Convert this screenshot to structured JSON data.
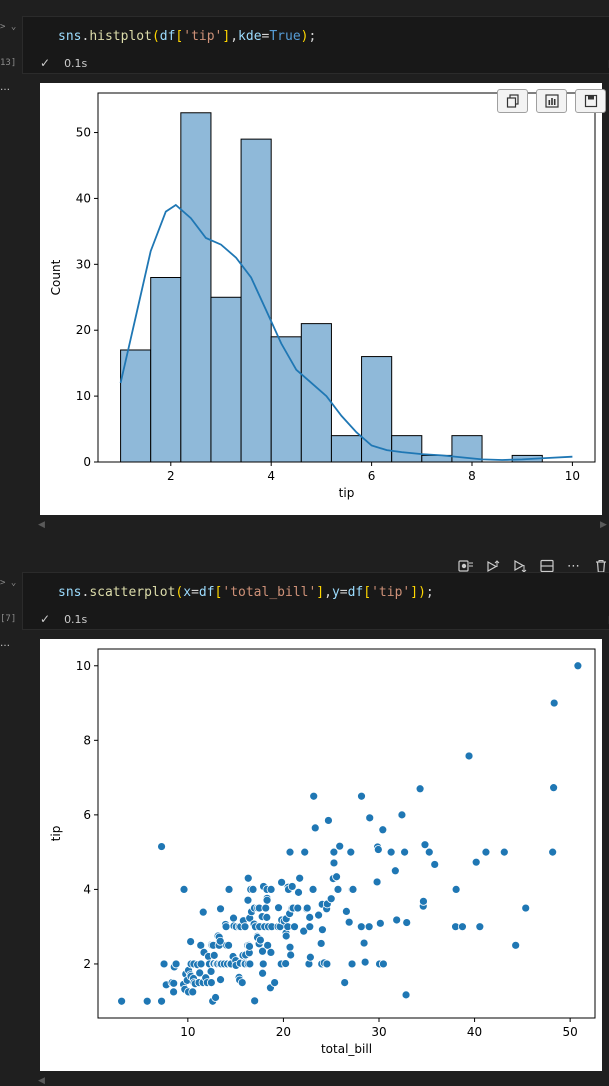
{
  "cells": [
    {
      "exec_count": "13]",
      "code_tokens": [
        {
          "t": "sns",
          "c": "id"
        },
        {
          "t": ".",
          "c": "op"
        },
        {
          "t": "histplot",
          "c": "fn"
        },
        {
          "t": "(",
          "c": "pn"
        },
        {
          "t": "df",
          "c": "id"
        },
        {
          "t": "[",
          "c": "pn"
        },
        {
          "t": "'tip'",
          "c": "st"
        },
        {
          "t": "]",
          "c": "pn"
        },
        {
          "t": ",",
          "c": "op"
        },
        {
          "t": "kde",
          "c": "id"
        },
        {
          "t": "=",
          "c": "op"
        },
        {
          "t": "True",
          "c": "kw"
        },
        {
          "t": ")",
          "c": "pn"
        },
        {
          "t": ";",
          "c": "op"
        }
      ],
      "time": "0.1s",
      "lang": "Py"
    },
    {
      "exec_count": "[7]",
      "code_tokens": [
        {
          "t": "sns",
          "c": "id"
        },
        {
          "t": ".",
          "c": "op"
        },
        {
          "t": "scatterplot",
          "c": "fn"
        },
        {
          "t": "(",
          "c": "pn"
        },
        {
          "t": "x",
          "c": "id"
        },
        {
          "t": "=",
          "c": "op"
        },
        {
          "t": "df",
          "c": "id"
        },
        {
          "t": "[",
          "c": "pn"
        },
        {
          "t": "'total_bill'",
          "c": "st"
        },
        {
          "t": "]",
          "c": "pn"
        },
        {
          "t": ",",
          "c": "op"
        },
        {
          "t": "y",
          "c": "id"
        },
        {
          "t": "=",
          "c": "op"
        },
        {
          "t": "df",
          "c": "id"
        },
        {
          "t": "[",
          "c": "pn"
        },
        {
          "t": "'tip'",
          "c": "st"
        },
        {
          "t": "]",
          "c": "pn"
        },
        {
          "t": ")",
          "c": "pn"
        },
        {
          "t": ";",
          "c": "op"
        }
      ],
      "time": "0.1s",
      "lang": "Py"
    }
  ],
  "output_toolbar_icons": [
    "copy-icon",
    "chart-icon",
    "save-icon"
  ],
  "cell_toolbar_icons": [
    "run-by-line-icon",
    "execute-above-icon",
    "execute-below-icon",
    "split-cell-icon",
    "more-icon",
    "delete-icon"
  ],
  "colors": {
    "bar_fill": "#8fb9d9",
    "bar_edge": "#000000",
    "line": "#1f77b4",
    "point": "#1f77b4"
  },
  "chart_data": [
    {
      "type": "bar",
      "subtype": "histogram_with_kde",
      "xlabel": "tip",
      "ylabel": "Count",
      "xlim": [
        0.55,
        10.45
      ],
      "ylim": [
        0,
        56
      ],
      "xticks": [
        2,
        4,
        6,
        8,
        10
      ],
      "yticks": [
        0,
        10,
        20,
        30,
        40,
        50
      ],
      "bins": [
        {
          "x0": 1.0,
          "x1": 1.6,
          "count": 17
        },
        {
          "x0": 1.6,
          "x1": 2.2,
          "count": 28
        },
        {
          "x0": 2.2,
          "x1": 2.8,
          "count": 53
        },
        {
          "x0": 2.8,
          "x1": 3.4,
          "count": 25
        },
        {
          "x0": 3.4,
          "x1": 4.0,
          "count": 49
        },
        {
          "x0": 4.0,
          "x1": 4.6,
          "count": 19
        },
        {
          "x0": 4.6,
          "x1": 5.2,
          "count": 21
        },
        {
          "x0": 5.2,
          "x1": 5.8,
          "count": 4
        },
        {
          "x0": 5.8,
          "x1": 6.4,
          "count": 16
        },
        {
          "x0": 6.4,
          "x1": 7.0,
          "count": 4
        },
        {
          "x0": 7.0,
          "x1": 7.6,
          "count": 1
        },
        {
          "x0": 7.6,
          "x1": 8.2,
          "count": 4
        },
        {
          "x0": 8.2,
          "x1": 8.8,
          "count": 0
        },
        {
          "x0": 8.8,
          "x1": 9.4,
          "count": 1
        },
        {
          "x0": 9.4,
          "x1": 10.0,
          "count": 0
        }
      ],
      "kde": {
        "x": [
          1.0,
          1.3,
          1.6,
          1.9,
          2.1,
          2.4,
          2.7,
          3.0,
          3.3,
          3.6,
          3.9,
          4.2,
          4.5,
          4.8,
          5.1,
          5.4,
          5.7,
          6.0,
          6.3,
          6.6,
          7.0,
          7.4,
          7.8,
          8.2,
          8.6,
          9.0,
          9.5,
          10.0
        ],
        "y": [
          12,
          22,
          32,
          38,
          39,
          37,
          34,
          33,
          31,
          28,
          23,
          18,
          14,
          12,
          10,
          7,
          4.5,
          2.5,
          1.8,
          1.5,
          1.2,
          1.0,
          0.7,
          0.4,
          0.3,
          0.4,
          0.6,
          0.8
        ]
      }
    },
    {
      "type": "scatter",
      "xlabel": "total_bill",
      "ylabel": "tip",
      "xlim": [
        0.6,
        52.6
      ],
      "ylim": [
        0.55,
        10.45
      ],
      "xticks": [
        10,
        20,
        30,
        40,
        50
      ],
      "yticks": [
        2,
        4,
        6,
        8,
        10
      ],
      "points": [
        [
          3.07,
          1.0
        ],
        [
          5.75,
          1.0
        ],
        [
          7.25,
          1.0
        ],
        [
          7.25,
          5.15
        ],
        [
          7.51,
          2.0
        ],
        [
          7.74,
          1.44
        ],
        [
          8.35,
          1.5
        ],
        [
          8.51,
          1.25
        ],
        [
          8.52,
          1.48
        ],
        [
          8.58,
          1.92
        ],
        [
          8.77,
          2.0
        ],
        [
          9.55,
          1.45
        ],
        [
          9.6,
          4.0
        ],
        [
          9.68,
          1.32
        ],
        [
          9.78,
          1.73
        ],
        [
          9.94,
          1.56
        ],
        [
          10.07,
          1.25
        ],
        [
          10.07,
          1.83
        ],
        [
          10.27,
          1.71
        ],
        [
          10.29,
          2.6
        ],
        [
          10.33,
          1.67
        ],
        [
          10.34,
          2.0
        ],
        [
          10.51,
          1.25
        ],
        [
          10.59,
          1.61
        ],
        [
          10.63,
          2.0
        ],
        [
          10.65,
          1.5
        ],
        [
          10.77,
          1.47
        ],
        [
          11.02,
          1.98
        ],
        [
          11.17,
          1.5
        ],
        [
          11.24,
          1.76
        ],
        [
          11.35,
          2.5
        ],
        [
          11.38,
          2.0
        ],
        [
          11.59,
          1.5
        ],
        [
          11.61,
          3.39
        ],
        [
          11.69,
          2.31
        ],
        [
          11.87,
          1.63
        ],
        [
          12.03,
          1.5
        ],
        [
          12.16,
          2.2
        ],
        [
          12.26,
          2.0
        ],
        [
          12.43,
          1.8
        ],
        [
          12.46,
          1.5
        ],
        [
          12.48,
          2.52
        ],
        [
          12.54,
          2.5
        ],
        [
          12.6,
          1.0
        ],
        [
          12.66,
          2.5
        ],
        [
          12.69,
          2.0
        ],
        [
          12.74,
          2.01
        ],
        [
          12.76,
          2.23
        ],
        [
          12.9,
          1.1
        ],
        [
          13.0,
          2.0
        ],
        [
          13.03,
          2.0
        ],
        [
          13.13,
          2.0
        ],
        [
          13.16,
          2.75
        ],
        [
          13.27,
          2.5
        ],
        [
          13.28,
          2.72
        ],
        [
          13.37,
          2.0
        ],
        [
          13.39,
          2.61
        ],
        [
          13.42,
          1.58
        ],
        [
          13.42,
          3.48
        ],
        [
          13.51,
          2.0
        ],
        [
          13.81,
          2.0
        ],
        [
          13.94,
          3.06
        ],
        [
          14.0,
          3.0
        ],
        [
          14.07,
          2.5
        ],
        [
          14.15,
          2.0
        ],
        [
          14.26,
          2.5
        ],
        [
          14.31,
          4.0
        ],
        [
          14.48,
          2.0
        ],
        [
          14.52,
          2.0
        ],
        [
          14.73,
          2.2
        ],
        [
          14.78,
          3.23
        ],
        [
          14.83,
          3.02
        ],
        [
          15.01,
          2.09
        ],
        [
          15.04,
          1.96
        ],
        [
          15.06,
          3.0
        ],
        [
          15.36,
          1.64
        ],
        [
          15.38,
          3.0
        ],
        [
          15.42,
          1.57
        ],
        [
          15.48,
          2.02
        ],
        [
          15.53,
          3.0
        ],
        [
          15.69,
          1.5
        ],
        [
          15.77,
          2.23
        ],
        [
          15.81,
          3.16
        ],
        [
          15.95,
          2.0
        ],
        [
          15.98,
          2.03
        ],
        [
          15.98,
          3.0
        ],
        [
          16.0,
          2.0
        ],
        [
          16.04,
          2.24
        ],
        [
          16.27,
          2.5
        ],
        [
          16.29,
          3.71
        ],
        [
          16.31,
          2.0
        ],
        [
          16.32,
          4.3
        ],
        [
          16.4,
          2.5
        ],
        [
          16.43,
          2.3
        ],
        [
          16.45,
          2.47
        ],
        [
          16.47,
          3.23
        ],
        [
          16.49,
          2.0
        ],
        [
          16.58,
          4.0
        ],
        [
          16.66,
          3.4
        ],
        [
          16.82,
          4.0
        ],
        [
          16.93,
          3.07
        ],
        [
          16.97,
          3.5
        ],
        [
          16.99,
          1.01
        ],
        [
          17.07,
          3.0
        ],
        [
          17.26,
          2.74
        ],
        [
          17.29,
          2.71
        ],
        [
          17.31,
          3.5
        ],
        [
          17.46,
          2.54
        ],
        [
          17.47,
          3.5
        ],
        [
          17.51,
          3.0
        ],
        [
          17.59,
          2.64
        ],
        [
          17.78,
          3.27
        ],
        [
          17.81,
          2.34
        ],
        [
          17.82,
          1.75
        ],
        [
          17.89,
          2.0
        ],
        [
          17.92,
          4.08
        ],
        [
          18.04,
          3.0
        ],
        [
          18.15,
          3.5
        ],
        [
          18.24,
          3.76
        ],
        [
          18.26,
          3.25
        ],
        [
          18.28,
          4.0
        ],
        [
          18.29,
          3.76
        ],
        [
          18.29,
          3.71
        ],
        [
          18.35,
          2.5
        ],
        [
          18.43,
          3.0
        ],
        [
          18.64,
          1.36
        ],
        [
          18.69,
          2.31
        ],
        [
          18.71,
          4.0
        ],
        [
          18.78,
          3.0
        ],
        [
          19.08,
          1.5
        ],
        [
          19.44,
          3.0
        ],
        [
          19.49,
          3.51
        ],
        [
          19.65,
          3.0
        ],
        [
          19.77,
          2.0
        ],
        [
          19.81,
          4.19
        ],
        [
          19.82,
          3.18
        ],
        [
          20.08,
          3.15
        ],
        [
          20.23,
          2.01
        ],
        [
          20.27,
          2.83
        ],
        [
          20.29,
          2.75
        ],
        [
          20.29,
          3.21
        ],
        [
          20.45,
          3.0
        ],
        [
          20.49,
          4.06
        ],
        [
          20.53,
          4.0
        ],
        [
          20.65,
          3.35
        ],
        [
          20.69,
          2.45
        ],
        [
          20.69,
          5.0
        ],
        [
          20.76,
          2.24
        ],
        [
          20.9,
          3.5
        ],
        [
          20.92,
          4.08
        ],
        [
          21.01,
          3.5
        ],
        [
          21.16,
          3.0
        ],
        [
          21.5,
          3.5
        ],
        [
          21.58,
          3.92
        ],
        [
          21.7,
          4.3
        ],
        [
          22.12,
          2.88
        ],
        [
          22.23,
          5.0
        ],
        [
          22.42,
          3.48
        ],
        [
          22.49,
          3.5
        ],
        [
          22.67,
          2.0
        ],
        [
          22.75,
          3.25
        ],
        [
          22.76,
          3.0
        ],
        [
          22.82,
          2.18
        ],
        [
          23.1,
          4.0
        ],
        [
          23.17,
          6.5
        ],
        [
          23.33,
          5.65
        ],
        [
          23.68,
          3.31
        ],
        [
          23.95,
          2.55
        ],
        [
          24.01,
          2.0
        ],
        [
          24.06,
          3.6
        ],
        [
          24.08,
          2.92
        ],
        [
          24.27,
          2.03
        ],
        [
          24.52,
          3.48
        ],
        [
          24.55,
          2.0
        ],
        [
          24.59,
          3.61
        ],
        [
          24.71,
          5.85
        ],
        [
          25.0,
          3.75
        ],
        [
          25.21,
          4.29
        ],
        [
          25.28,
          5.0
        ],
        [
          25.29,
          4.71
        ],
        [
          25.56,
          4.34
        ],
        [
          25.71,
          4.0
        ],
        [
          25.89,
          5.16
        ],
        [
          26.41,
          1.5
        ],
        [
          26.59,
          3.41
        ],
        [
          26.86,
          3.14
        ],
        [
          26.88,
          3.12
        ],
        [
          27.05,
          5.0
        ],
        [
          27.18,
          2.0
        ],
        [
          27.2,
          4.0
        ],
        [
          27.28,
          4.0
        ],
        [
          28.15,
          3.0
        ],
        [
          28.17,
          6.5
        ],
        [
          28.44,
          2.56
        ],
        [
          28.55,
          2.05
        ],
        [
          28.97,
          3.0
        ],
        [
          29.03,
          5.92
        ],
        [
          29.8,
          4.2
        ],
        [
          29.85,
          5.14
        ],
        [
          29.93,
          5.07
        ],
        [
          30.06,
          2.0
        ],
        [
          30.14,
          3.09
        ],
        [
          30.4,
          5.6
        ],
        [
          30.46,
          2.0
        ],
        [
          31.27,
          5.0
        ],
        [
          31.71,
          4.5
        ],
        [
          31.85,
          3.18
        ],
        [
          32.4,
          6.0
        ],
        [
          32.68,
          5.0
        ],
        [
          32.83,
          1.17
        ],
        [
          32.9,
          3.11
        ],
        [
          34.3,
          6.7
        ],
        [
          34.63,
          3.55
        ],
        [
          34.65,
          3.68
        ],
        [
          34.81,
          5.2
        ],
        [
          35.26,
          5.0
        ],
        [
          35.83,
          4.67
        ],
        [
          38.01,
          3.0
        ],
        [
          38.07,
          4.0
        ],
        [
          38.73,
          3.0
        ],
        [
          39.42,
          7.58
        ],
        [
          40.17,
          4.73
        ],
        [
          40.55,
          3.0
        ],
        [
          41.19,
          5.0
        ],
        [
          43.11,
          5.0
        ],
        [
          44.3,
          2.5
        ],
        [
          45.35,
          3.5
        ],
        [
          48.17,
          5.0
        ],
        [
          48.27,
          6.73
        ],
        [
          48.33,
          9.0
        ],
        [
          50.81,
          10.0
        ]
      ]
    }
  ]
}
